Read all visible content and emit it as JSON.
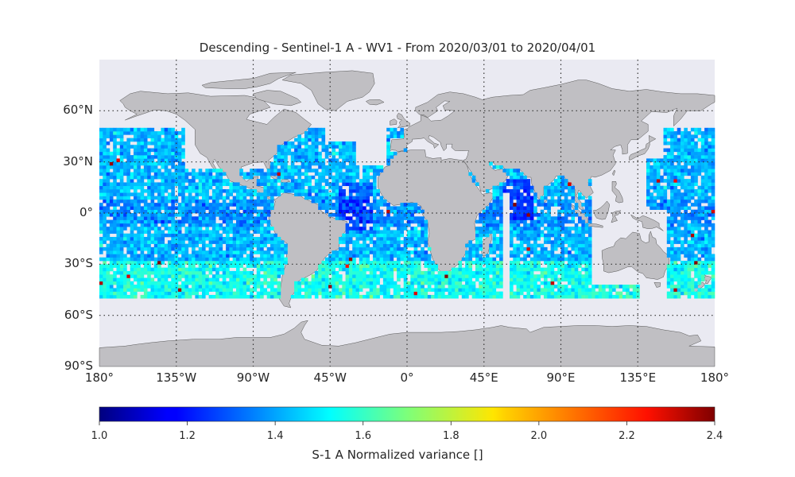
{
  "title": "Descending - Sentinel-1 A - WV1 - From 2020/03/01 to 2020/04/01",
  "lat_ticks": [
    {
      "label": "60°N",
      "value": 60
    },
    {
      "label": "30°N",
      "value": 30
    },
    {
      "label": "0°",
      "value": 0
    },
    {
      "label": "30°S",
      "value": -30
    },
    {
      "label": "60°S",
      "value": -60
    },
    {
      "label": "90°S",
      "value": -90
    }
  ],
  "lon_ticks": [
    {
      "label": "180°",
      "value": -180
    },
    {
      "label": "135°W",
      "value": -135
    },
    {
      "label": "90°W",
      "value": -90
    },
    {
      "label": "45°W",
      "value": -45
    },
    {
      "label": "0°",
      "value": 0
    },
    {
      "label": "45°E",
      "value": 45
    },
    {
      "label": "90°E",
      "value": 90
    },
    {
      "label": "135°E",
      "value": 135
    },
    {
      "label": "180°",
      "value": 180
    }
  ],
  "colorbar": {
    "label": "S-1 A Normalized variance []",
    "min": 1.0,
    "max": 2.4,
    "tick_labels": [
      "1.0",
      "1.2",
      "1.4",
      "1.6",
      "1.8",
      "2.0",
      "2.2",
      "2.4"
    ],
    "colormap": "jet"
  },
  "colors": {
    "ocean": "#eaeaf2",
    "land": "#c0bfc3",
    "coast": "#555555",
    "grid": "#333333"
  },
  "map": {
    "projection": "plate-carree",
    "lon_range": [
      -180,
      180
    ],
    "lat_range": [
      -90,
      90
    ],
    "data_lat_range": [
      -50,
      50
    ]
  }
}
